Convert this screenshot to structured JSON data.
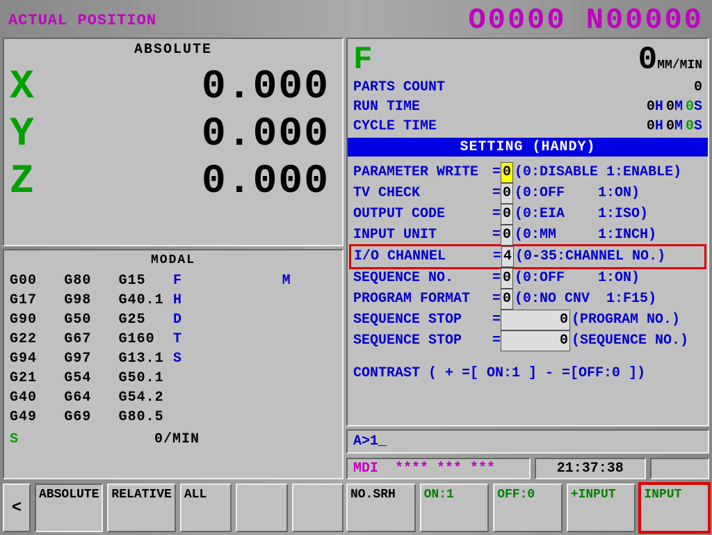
{
  "header": {
    "title": "ACTUAL POSITION",
    "program": "O0000 N00000"
  },
  "absolute": {
    "title": "ABSOLUTE",
    "axes": [
      {
        "label": "X",
        "value": "0.000"
      },
      {
        "label": "Y",
        "value": "0.000"
      },
      {
        "label": "Z",
        "value": "0.000"
      }
    ]
  },
  "modal": {
    "title": "MODAL",
    "rows": [
      [
        "G00",
        "G80",
        "G15",
        "F",
        "",
        "M"
      ],
      [
        "G17",
        "G98",
        "G40.1",
        "H",
        "",
        ""
      ],
      [
        "G90",
        "G50",
        "G25",
        "D",
        "",
        ""
      ],
      [
        "G22",
        "G67",
        "G160",
        "T",
        "",
        ""
      ],
      [
        "G94",
        "G97",
        "G13.1",
        "S",
        "",
        ""
      ],
      [
        "G21",
        "G54",
        "G50.1",
        "",
        "",
        ""
      ],
      [
        "G40",
        "G64",
        "G54.2",
        "",
        "",
        ""
      ],
      [
        "G49",
        "G69",
        "G80.5",
        "",
        "",
        ""
      ]
    ],
    "spindle": "S",
    "spindle_val": "0/MIN"
  },
  "feed": {
    "label": "F",
    "value": "0",
    "unit": "MM/MIN"
  },
  "info": {
    "parts_count_label": "PARTS COUNT",
    "parts_count": "0",
    "run_time_label": "RUN TIME",
    "run_h": "0",
    "run_m": "0",
    "run_s": "0",
    "cycle_time_label": "CYCLE TIME",
    "cycle_h": "0",
    "cycle_m": "0",
    "cycle_s": "0"
  },
  "setting": {
    "banner": "SETTING (HANDY)",
    "rows": [
      {
        "label": "PARAMETER WRITE",
        "val": "0",
        "desc": "(0:DISABLE 1:ENABLE)",
        "hl": true
      },
      {
        "label": "TV CHECK",
        "val": "0",
        "desc": "(0:OFF    1:ON)"
      },
      {
        "label": "OUTPUT CODE",
        "val": "0",
        "desc": "(0:EIA    1:ISO)"
      },
      {
        "label": "INPUT UNIT",
        "val": "0",
        "desc": "(0:MM     1:INCH)"
      },
      {
        "label": "I/O CHANNEL",
        "val": "4",
        "desc": "(0-35:CHANNEL NO.)",
        "io": true
      },
      {
        "label": "SEQUENCE NO.",
        "val": "0",
        "desc": "(0:OFF    1:ON)"
      },
      {
        "label": "PROGRAM FORMAT",
        "val": "0",
        "desc": "(0:NO CNV  1:F15)"
      },
      {
        "label": "SEQUENCE STOP",
        "val": "0",
        "desc": "(PROGRAM NO.)",
        "wide": true
      },
      {
        "label": "SEQUENCE STOP",
        "val": "0",
        "desc": "(SEQUENCE NO.)",
        "wide": true
      }
    ],
    "contrast": "CONTRAST   ( + =[ ON:1 ] - =[OFF:0 ])"
  },
  "cmdline": "A>1_",
  "status": {
    "mode": "MDI",
    "stars": "**** *** ***",
    "time": "21:37:38"
  },
  "softkeys_left": {
    "back": "<",
    "keys": [
      "ABSOLUTE",
      "RELATIVE",
      "ALL",
      "",
      ""
    ]
  },
  "softkeys_right": {
    "keys": [
      "NO.SRH",
      "ON:1",
      "OFF:0",
      "+INPUT",
      "INPUT"
    ]
  }
}
